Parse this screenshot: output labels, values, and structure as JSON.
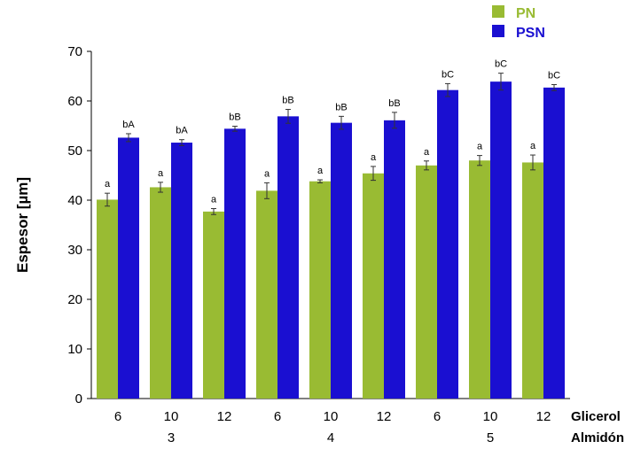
{
  "chart_data": {
    "type": "bar",
    "ylabel": "Espesor [µm]",
    "ylim": [
      0,
      70
    ],
    "yticks": [
      0,
      10,
      20,
      30,
      40,
      50,
      60,
      70
    ],
    "grid": false,
    "legend_position": "top-right",
    "x_level1_title": "Glicerol",
    "x_level2_title": "Almidón",
    "categories": [
      "6",
      "10",
      "12",
      "6",
      "10",
      "12",
      "6",
      "10",
      "12"
    ],
    "groups": [
      {
        "label": "3",
        "count": 3
      },
      {
        "label": "4",
        "count": 3
      },
      {
        "label": "5",
        "count": 3
      }
    ],
    "series": [
      {
        "name": "PN",
        "color": "#99bb33",
        "values": [
          40.1,
          42.6,
          37.7,
          41.9,
          43.8,
          45.4,
          47.0,
          48.0,
          47.6
        ],
        "errors": [
          1.3,
          1.0,
          0.6,
          1.6,
          0.3,
          1.4,
          0.9,
          1.0,
          1.5
        ],
        "labels": [
          "a",
          "a",
          "a",
          "a",
          "a",
          "a",
          "a",
          "a",
          "a"
        ]
      },
      {
        "name": "PSN",
        "color": "#1a0fd1",
        "values": [
          52.6,
          51.6,
          54.4,
          56.9,
          55.6,
          56.1,
          62.2,
          63.9,
          62.7
        ],
        "errors": [
          0.8,
          0.6,
          0.5,
          1.4,
          1.3,
          1.6,
          1.3,
          1.7,
          0.6
        ],
        "labels": [
          "bA",
          "bA",
          "bB",
          "bB",
          "bB",
          "bB",
          "bC",
          "bC",
          "bC"
        ]
      }
    ]
  }
}
